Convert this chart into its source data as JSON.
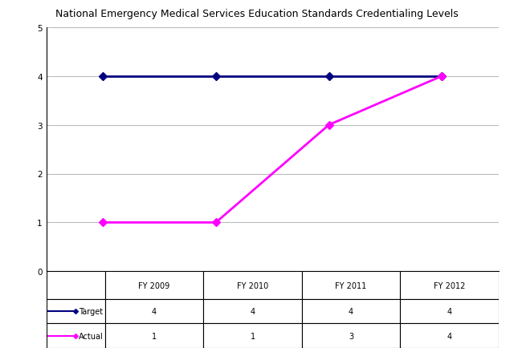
{
  "title": "National Emergency Medical Services Education Standards Credentialing Levels",
  "title_fontsize": 9,
  "x_labels": [
    "FY 2009",
    "FY 2010",
    "FY 2011",
    "FY 2012"
  ],
  "x_values": [
    0,
    1,
    2,
    3
  ],
  "target_values": [
    4,
    4,
    4,
    4
  ],
  "actual_values": [
    1,
    1,
    3,
    4
  ],
  "target_color": "#000080",
  "actual_color": "#FF00FF",
  "target_label": "Target",
  "actual_label": "Actual",
  "ylim": [
    0,
    5
  ],
  "yticks": [
    0,
    1,
    2,
    3,
    4,
    5
  ],
  "background_color": "#ffffff",
  "grid_color": "#bbbbbb",
  "table_target_row": [
    "4",
    "4",
    "4",
    "4"
  ],
  "table_actual_row": [
    "1",
    "1",
    "3",
    "4"
  ],
  "line_width": 2.0,
  "marker_style": "D",
  "marker_size": 5,
  "cell_fontsize": 7,
  "tick_fontsize": 7.5
}
